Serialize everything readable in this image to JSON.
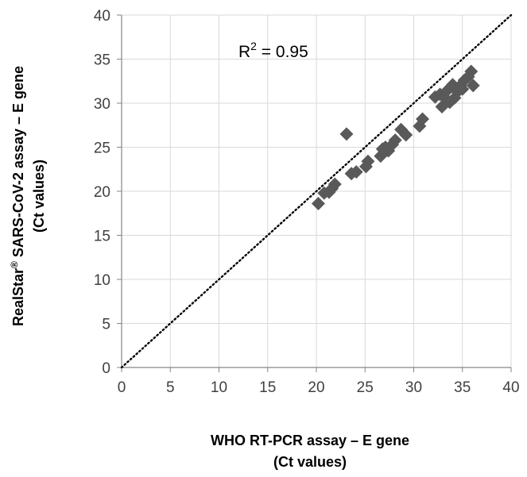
{
  "chart_data": {
    "type": "scatter",
    "xlabel_lines": [
      "WHO RT-PCR assay – E gene",
      "(Ct values)"
    ],
    "ylabel_lines": [
      "RealStar® SARS-CoV-2 assay – E gene",
      "(Ct values)"
    ],
    "xlim": [
      0,
      40
    ],
    "ylim": [
      0,
      40
    ],
    "xticks": [
      "0",
      "5",
      "10",
      "15",
      "20",
      "25",
      "30",
      "35",
      "40"
    ],
    "yticks": [
      "0",
      "5",
      "10",
      "15",
      "20",
      "25",
      "30",
      "35",
      "40"
    ],
    "grid": true,
    "annotation": {
      "base": "R",
      "sup": "2",
      "rest": " = 0.95"
    },
    "reference_line": {
      "style": "dotted",
      "points": [
        [
          0,
          0
        ],
        [
          40,
          40
        ]
      ]
    },
    "marker": "diamond",
    "colors": {
      "marker": "#595959",
      "grid": "#d9d9d9",
      "axis": "#868686",
      "line": "#000000"
    },
    "series": [
      {
        "points": [
          [
            20.2,
            18.6
          ],
          [
            20.8,
            19.8
          ],
          [
            21.3,
            19.9
          ],
          [
            21.6,
            20.3
          ],
          [
            21.9,
            20.8
          ],
          [
            23.1,
            26.5
          ],
          [
            23.6,
            22.0
          ],
          [
            24.1,
            22.2
          ],
          [
            25.1,
            22.8
          ],
          [
            25.3,
            23.4
          ],
          [
            26.6,
            24.0
          ],
          [
            26.8,
            24.8
          ],
          [
            27.1,
            25.0
          ],
          [
            27.4,
            24.6
          ],
          [
            27.8,
            25.3
          ],
          [
            28.1,
            25.8
          ],
          [
            28.7,
            27.0
          ],
          [
            29.2,
            26.4
          ],
          [
            30.6,
            27.4
          ],
          [
            30.9,
            28.2
          ],
          [
            32.2,
            30.7
          ],
          [
            32.7,
            31.0
          ],
          [
            32.9,
            29.6
          ],
          [
            33.2,
            30.6
          ],
          [
            33.4,
            31.4
          ],
          [
            33.7,
            30.1
          ],
          [
            33.9,
            31.9
          ],
          [
            34.0,
            32.1
          ],
          [
            34.2,
            30.6
          ],
          [
            34.5,
            31.3
          ],
          [
            34.8,
            32.0
          ],
          [
            35.0,
            31.6
          ],
          [
            35.2,
            32.6
          ],
          [
            35.6,
            33.0
          ],
          [
            35.9,
            33.6
          ],
          [
            36.1,
            32.0
          ]
        ]
      }
    ]
  }
}
